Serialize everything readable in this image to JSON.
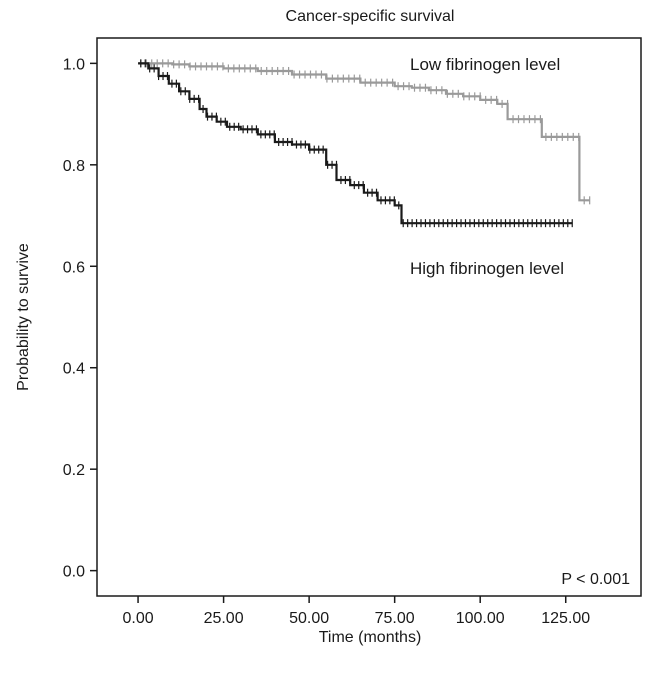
{
  "chart_data": {
    "type": "line",
    "title": "Cancer-specific survival",
    "xlabel": "Time (months)",
    "ylabel": "Probability to survive",
    "xlim": [
      -12,
      147
    ],
    "ylim": [
      -0.05,
      1.05
    ],
    "x_ticks": [
      "0.00",
      "25.00",
      "50.00",
      "75.00",
      "100.00",
      "125.00"
    ],
    "x_tick_values": [
      0,
      25,
      50,
      75,
      100,
      125
    ],
    "y_ticks": [
      "0.0",
      "0.2",
      "0.4",
      "0.6",
      "0.8",
      "1.0"
    ],
    "y_tick_values": [
      0,
      0.2,
      0.4,
      0.6,
      0.8,
      1.0
    ],
    "annotation": "P < 0.001",
    "grid": false,
    "series": [
      {
        "name": "Low fibrinogen level",
        "color": "#9a9a9a",
        "x": [
          0,
          10,
          15,
          25,
          35,
          45,
          55,
          65,
          75,
          80,
          85,
          90,
          95,
          100,
          105,
          108,
          115,
          118,
          128,
          129,
          132
        ],
        "y": [
          1.0,
          0.998,
          0.994,
          0.99,
          0.985,
          0.978,
          0.97,
          0.962,
          0.955,
          0.952,
          0.947,
          0.94,
          0.935,
          0.928,
          0.92,
          0.89,
          0.89,
          0.855,
          0.855,
          0.73,
          0.73
        ]
      },
      {
        "name": "High fibrinogen level",
        "color": "#1a1a1a",
        "x": [
          0,
          3,
          6,
          9,
          12,
          15,
          18,
          20,
          23,
          26,
          30,
          35,
          40,
          45,
          50,
          55,
          58,
          62,
          66,
          70,
          75,
          77,
          80,
          127
        ],
        "y": [
          1.0,
          0.99,
          0.975,
          0.96,
          0.945,
          0.93,
          0.91,
          0.895,
          0.885,
          0.875,
          0.87,
          0.86,
          0.845,
          0.84,
          0.83,
          0.8,
          0.77,
          0.76,
          0.745,
          0.73,
          0.72,
          0.685,
          0.685,
          0.685
        ]
      }
    ]
  }
}
